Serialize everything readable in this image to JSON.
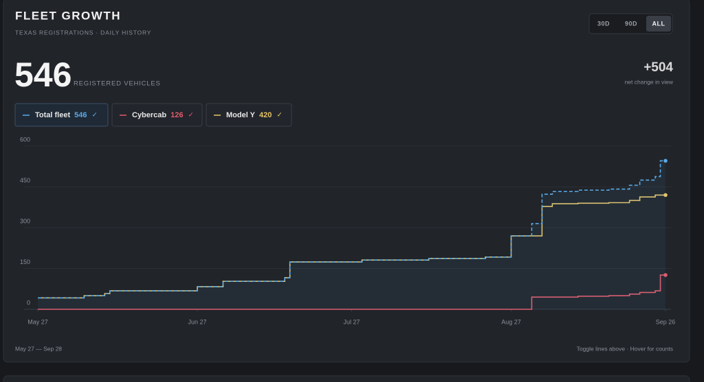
{
  "header": {
    "title": "FLEET GROWTH",
    "subtitle": "TEXAS REGISTRATIONS · DAILY HISTORY"
  },
  "range_buttons": [
    "30D",
    "90D",
    "ALL"
  ],
  "active_range": 2,
  "summary": {
    "unit": "REGISTERED VEHICLES",
    "net_change": "+504",
    "net_change_label": "net change in view"
  },
  "toggle_mark": "✓",
  "chart_data": {
    "type": "line",
    "step": true,
    "x": [
      "May 27",
      "Jun 5",
      "Jun 9",
      "Jun 10",
      "Jun 27",
      "Jul 2",
      "Jul 14",
      "Jul 15",
      "Jul 29",
      "Aug 11",
      "Aug 22",
      "Aug 27",
      "Aug 31",
      "Sep 2",
      "Sep 4",
      "Sep 9",
      "Sep 15",
      "Sep 19",
      "Sep 21",
      "Sep 24",
      "Sep 25",
      "Sep 26"
    ],
    "xlim": [
      "May 27",
      "Sep 26"
    ],
    "xticks": [
      "May 27",
      "Jun 27",
      "Jul 27",
      "Aug 27",
      "Sep 26"
    ],
    "ylim": [
      0,
      600
    ],
    "yticks": [
      0,
      150,
      300,
      450,
      600
    ],
    "grid": true,
    "series": [
      {
        "name": "Total fleet",
        "color": "#5aaae8",
        "dashed": true,
        "area": true,
        "values": [
          42,
          50,
          58,
          68,
          83,
          103,
          116,
          174,
          181,
          187,
          192,
          270,
          315,
          423,
          433,
          438,
          442,
          456,
          475,
          488,
          546,
          546
        ]
      },
      {
        "name": "Cybercab",
        "color": "#e25a6a",
        "dashed": false,
        "area": false,
        "values": [
          0,
          0,
          0,
          0,
          0,
          0,
          0,
          0,
          0,
          0,
          0,
          0,
          45,
          45,
          45,
          48,
          50,
          56,
          62,
          68,
          126,
          126
        ]
      },
      {
        "name": "Model Y",
        "color": "#e6c46a",
        "dashed": false,
        "area": false,
        "values": [
          42,
          50,
          58,
          68,
          83,
          103,
          116,
          174,
          181,
          187,
          192,
          270,
          270,
          378,
          388,
          390,
          392,
          400,
          413,
          420,
          420,
          420
        ]
      }
    ]
  },
  "footer": {
    "range": "May 27 — Sep 28",
    "hint": "Toggle lines above · Hover for counts"
  }
}
